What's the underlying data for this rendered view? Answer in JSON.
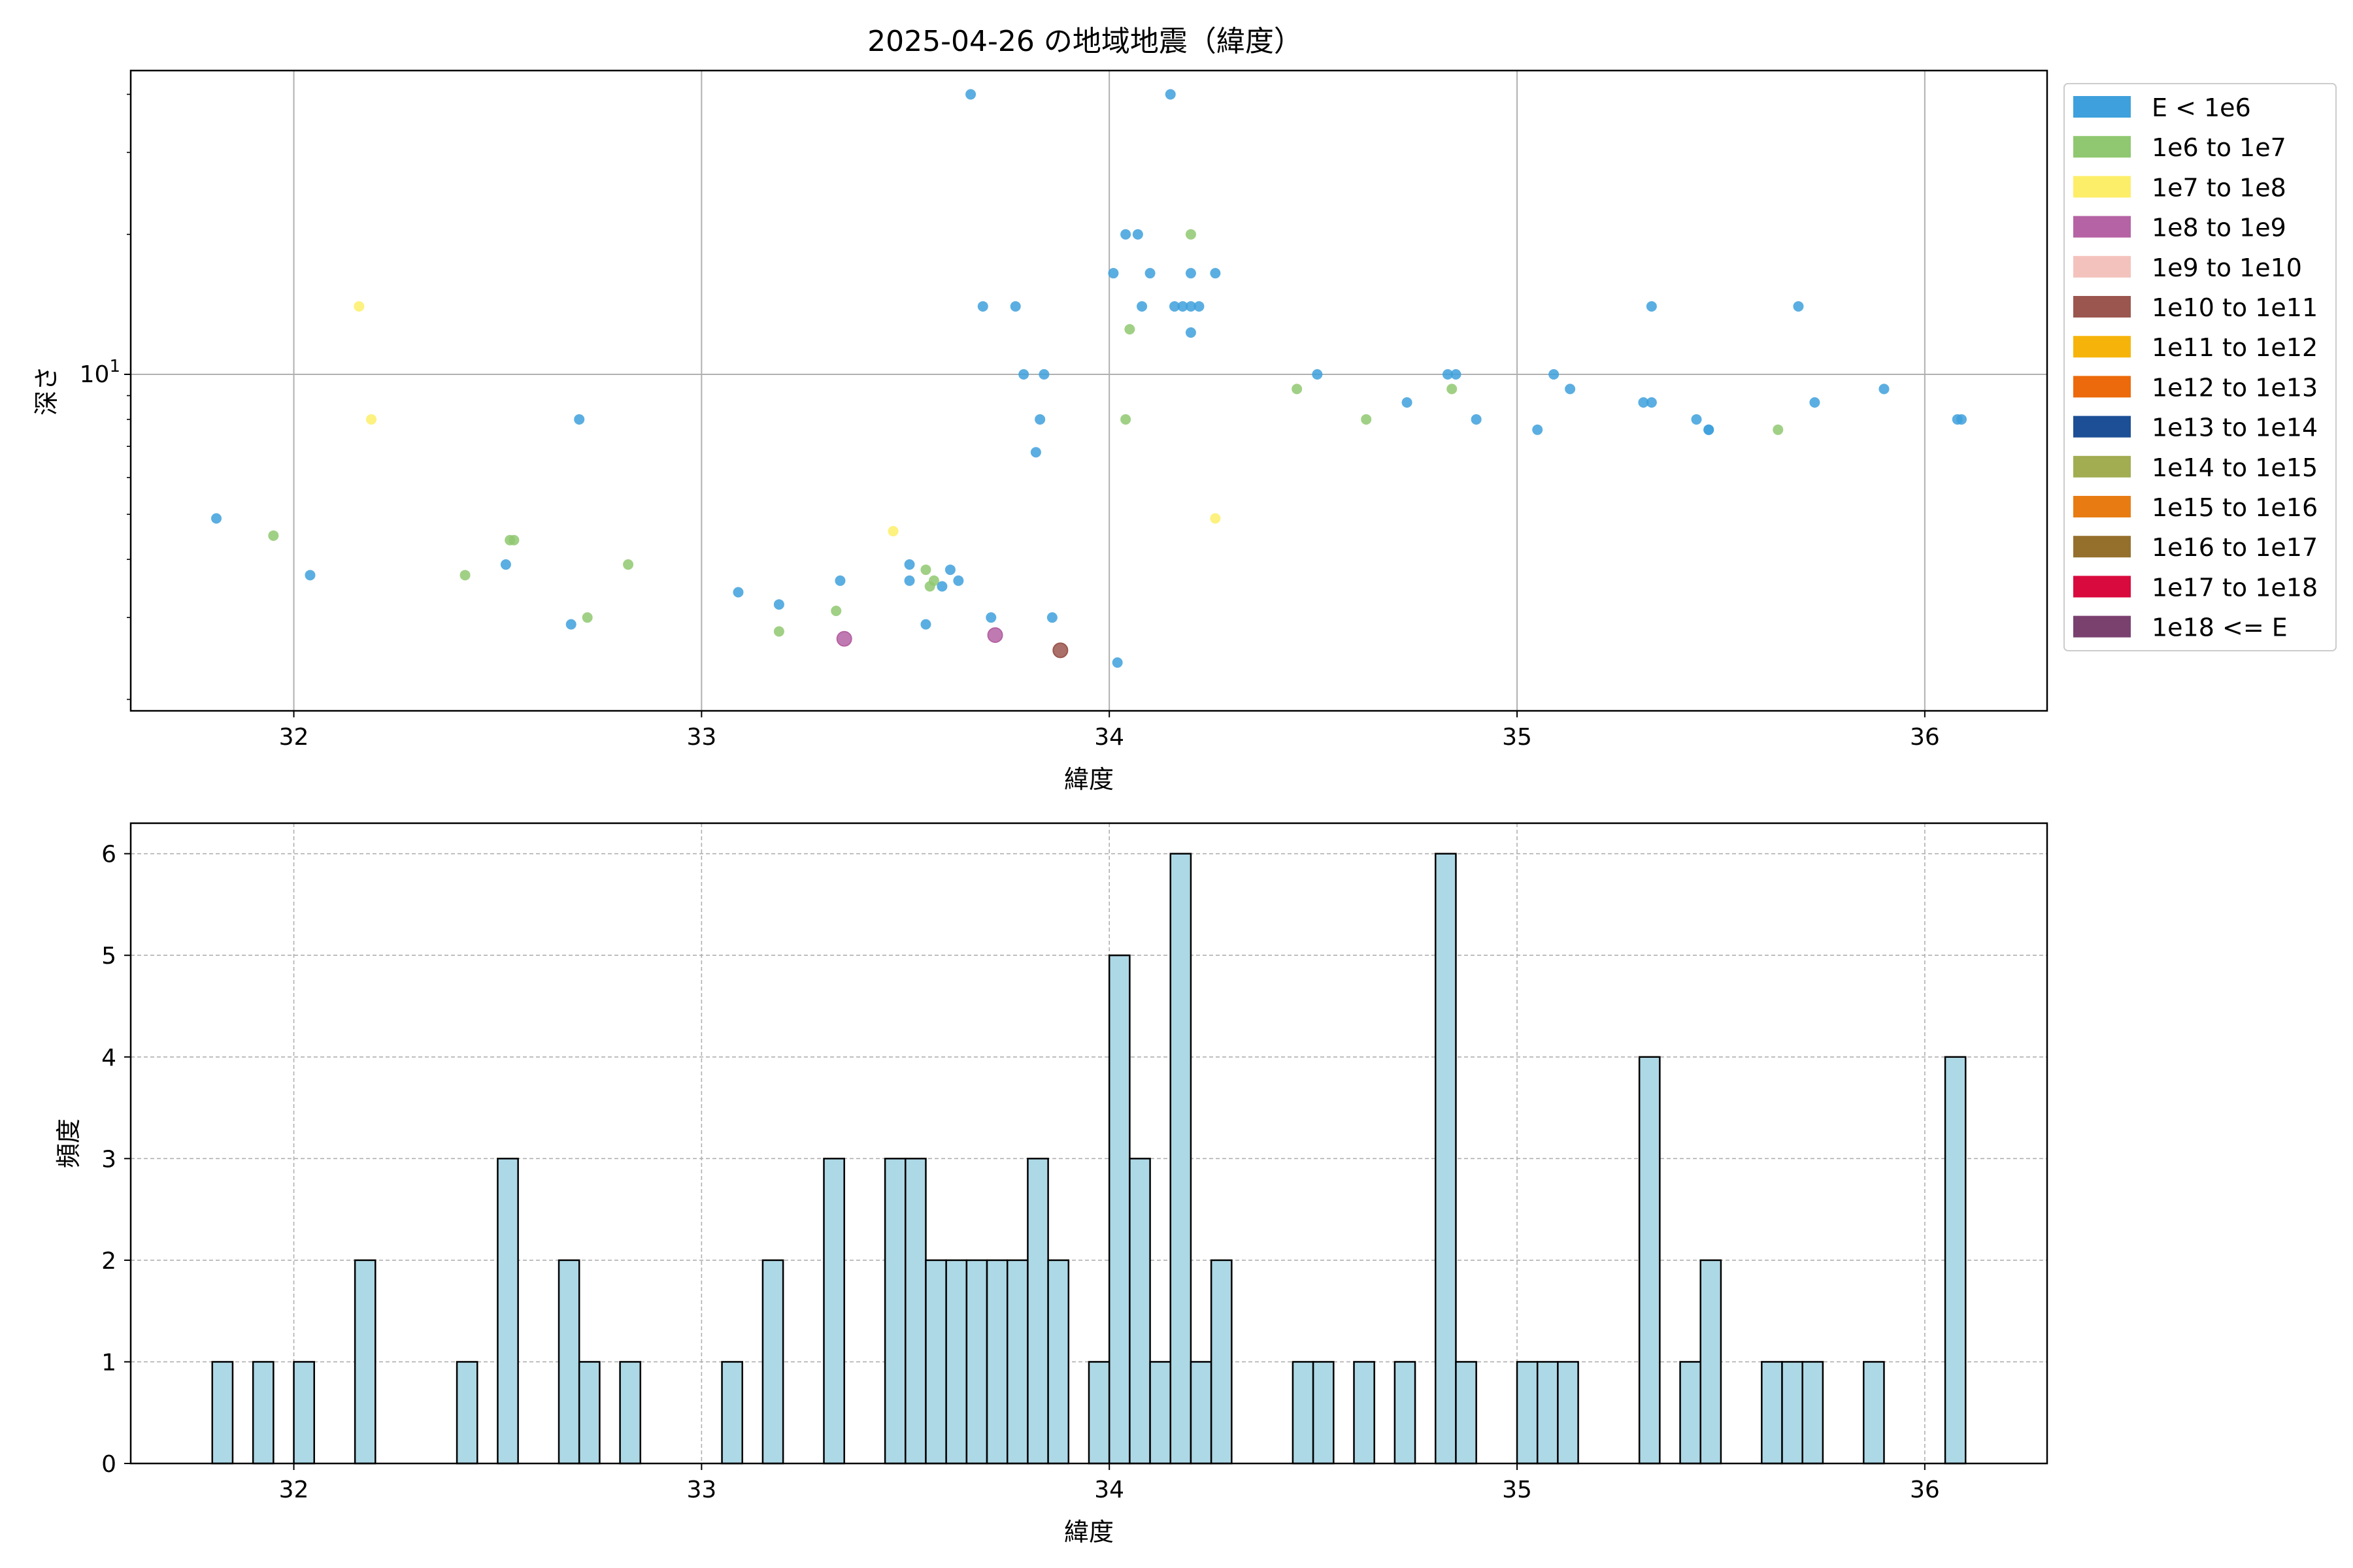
{
  "chart_data": [
    {
      "type": "scatter",
      "title": "2025-04-26 の地域地震（緯度）",
      "xlabel": "緯度",
      "ylabel": "深さ",
      "xlim": [
        31.6,
        36.3
      ],
      "ylim": [
        1.89,
        45
      ],
      "y_scale": "log",
      "x_ticks": [
        32,
        33,
        34,
        35,
        36
      ],
      "y_ticks": [
        {
          "value": 10,
          "label": "10",
          "exp": "1"
        }
      ],
      "grid": true,
      "legend_position": "right",
      "legend": [
        {
          "label": "E < 1e6",
          "color": "#3ea0dc"
        },
        {
          "label": "1e6 to 1e7",
          "color": "#8fc870"
        },
        {
          "label": "1e7 to 1e8",
          "color": "#fdee6a"
        },
        {
          "label": "1e8 to 1e9",
          "color": "#b563a4"
        },
        {
          "label": "1e9 to 1e10",
          "color": "#f4c2bc"
        },
        {
          "label": "1e10 to 1e11",
          "color": "#9b564f"
        },
        {
          "label": "1e11 to 1e12",
          "color": "#f6b40b"
        },
        {
          "label": "1e12 to 1e13",
          "color": "#ec6a0b"
        },
        {
          "label": "1e13 to 1e14",
          "color": "#1c4f96"
        },
        {
          "label": "1e14 to 1e15",
          "color": "#a2ad52"
        },
        {
          "label": "1e15 to 1e16",
          "color": "#e87c13"
        },
        {
          "label": "1e16 to 1e17",
          "color": "#95702d"
        },
        {
          "label": "1e17 to 1e18",
          "color": "#d90a3e"
        },
        {
          "label": "1e18 <= E",
          "color": "#7a416f"
        }
      ],
      "points": [
        {
          "x": 31.81,
          "y": 4.9,
          "c": 0
        },
        {
          "x": 31.95,
          "y": 4.5,
          "c": 1
        },
        {
          "x": 32.04,
          "y": 3.7,
          "c": 0
        },
        {
          "x": 32.16,
          "y": 14,
          "c": 2
        },
        {
          "x": 32.19,
          "y": 8,
          "c": 2
        },
        {
          "x": 32.42,
          "y": 3.7,
          "c": 1
        },
        {
          "x": 32.52,
          "y": 3.9,
          "c": 0
        },
        {
          "x": 32.53,
          "y": 4.4,
          "c": 1
        },
        {
          "x": 32.54,
          "y": 4.4,
          "c": 1
        },
        {
          "x": 32.68,
          "y": 2.9,
          "c": 0
        },
        {
          "x": 32.7,
          "y": 8,
          "c": 0
        },
        {
          "x": 32.72,
          "y": 3.0,
          "c": 1
        },
        {
          "x": 32.82,
          "y": 3.9,
          "c": 1
        },
        {
          "x": 33.09,
          "y": 3.4,
          "c": 0
        },
        {
          "x": 33.19,
          "y": 3.2,
          "c": 0
        },
        {
          "x": 33.19,
          "y": 2.8,
          "c": 1
        },
        {
          "x": 33.33,
          "y": 3.1,
          "c": 1
        },
        {
          "x": 33.34,
          "y": 3.6,
          "c": 0
        },
        {
          "x": 33.35,
          "y": 2.7,
          "c": 3
        },
        {
          "x": 33.47,
          "y": 4.6,
          "c": 2
        },
        {
          "x": 33.51,
          "y": 3.6,
          "c": 0
        },
        {
          "x": 33.51,
          "y": 3.9,
          "c": 0
        },
        {
          "x": 33.55,
          "y": 3.8,
          "c": 1
        },
        {
          "x": 33.55,
          "y": 2.9,
          "c": 0
        },
        {
          "x": 33.56,
          "y": 3.5,
          "c": 1
        },
        {
          "x": 33.57,
          "y": 3.6,
          "c": 1
        },
        {
          "x": 33.59,
          "y": 3.5,
          "c": 0
        },
        {
          "x": 33.61,
          "y": 3.8,
          "c": 0
        },
        {
          "x": 33.63,
          "y": 3.6,
          "c": 0
        },
        {
          "x": 33.66,
          "y": 40,
          "c": 0
        },
        {
          "x": 33.69,
          "y": 14,
          "c": 0
        },
        {
          "x": 33.71,
          "y": 3.0,
          "c": 0
        },
        {
          "x": 33.72,
          "y": 2.75,
          "c": 3
        },
        {
          "x": 33.77,
          "y": 14,
          "c": 0
        },
        {
          "x": 33.79,
          "y": 10,
          "c": 0
        },
        {
          "x": 33.82,
          "y": 6.8,
          "c": 0
        },
        {
          "x": 33.83,
          "y": 8,
          "c": 0
        },
        {
          "x": 33.84,
          "y": 10,
          "c": 0
        },
        {
          "x": 33.86,
          "y": 3.0,
          "c": 0
        },
        {
          "x": 33.88,
          "y": 2.55,
          "c": 5
        },
        {
          "x": 34.01,
          "y": 16.5,
          "c": 0
        },
        {
          "x": 34.02,
          "y": 2.4,
          "c": 0
        },
        {
          "x": 34.04,
          "y": 20,
          "c": 0
        },
        {
          "x": 34.04,
          "y": 8,
          "c": 1
        },
        {
          "x": 34.05,
          "y": 12.5,
          "c": 1
        },
        {
          "x": 34.07,
          "y": 20,
          "c": 0
        },
        {
          "x": 34.08,
          "y": 14,
          "c": 0
        },
        {
          "x": 34.1,
          "y": 16.5,
          "c": 0
        },
        {
          "x": 34.15,
          "y": 40,
          "c": 0
        },
        {
          "x": 34.16,
          "y": 14,
          "c": 0
        },
        {
          "x": 34.18,
          "y": 14,
          "c": 0
        },
        {
          "x": 34.2,
          "y": 20,
          "c": 1
        },
        {
          "x": 34.2,
          "y": 16.5,
          "c": 0
        },
        {
          "x": 34.2,
          "y": 14,
          "c": 0
        },
        {
          "x": 34.2,
          "y": 12.3,
          "c": 0
        },
        {
          "x": 34.22,
          "y": 14,
          "c": 0
        },
        {
          "x": 34.26,
          "y": 16.5,
          "c": 0
        },
        {
          "x": 34.26,
          "y": 4.9,
          "c": 2
        },
        {
          "x": 34.46,
          "y": 9.3,
          "c": 1
        },
        {
          "x": 34.51,
          "y": 10,
          "c": 0
        },
        {
          "x": 34.63,
          "y": 8,
          "c": 1
        },
        {
          "x": 34.73,
          "y": 8.7,
          "c": 0
        },
        {
          "x": 34.83,
          "y": 10,
          "c": 0
        },
        {
          "x": 34.84,
          "y": 9.3,
          "c": 1
        },
        {
          "x": 34.85,
          "y": 10,
          "c": 0
        },
        {
          "x": 34.9,
          "y": 8,
          "c": 0
        },
        {
          "x": 35.05,
          "y": 7.6,
          "c": 0
        },
        {
          "x": 35.09,
          "y": 10,
          "c": 0
        },
        {
          "x": 35.13,
          "y": 9.3,
          "c": 0
        },
        {
          "x": 35.31,
          "y": 8.7,
          "c": 0
        },
        {
          "x": 35.33,
          "y": 8.7,
          "c": 0
        },
        {
          "x": 35.33,
          "y": 14,
          "c": 0
        },
        {
          "x": 35.44,
          "y": 8,
          "c": 0
        },
        {
          "x": 35.47,
          "y": 7.6,
          "c": 0
        },
        {
          "x": 35.47,
          "y": 7.6,
          "c": 0
        },
        {
          "x": 35.64,
          "y": 7.6,
          "c": 1
        },
        {
          "x": 35.69,
          "y": 14,
          "c": 0
        },
        {
          "x": 35.73,
          "y": 8.7,
          "c": 0
        },
        {
          "x": 35.9,
          "y": 9.3,
          "c": 0
        },
        {
          "x": 36.08,
          "y": 8,
          "c": 0
        },
        {
          "x": 36.09,
          "y": 8,
          "c": 0
        }
      ]
    },
    {
      "type": "bar",
      "xlabel": "緯度",
      "ylabel": "頻度",
      "xlim": [
        31.6,
        36.3
      ],
      "ylim": [
        0,
        6.3
      ],
      "x_ticks": [
        32,
        33,
        34,
        35,
        36
      ],
      "y_ticks": [
        0,
        1,
        2,
        3,
        4,
        5,
        6
      ],
      "grid": true,
      "bar_color": "#add8e6",
      "bin_width": 0.05,
      "bins": [
        {
          "x0": 31.8,
          "count": 1
        },
        {
          "x0": 31.9,
          "count": 1
        },
        {
          "x0": 32.0,
          "count": 1
        },
        {
          "x0": 32.15,
          "count": 2
        },
        {
          "x0": 32.4,
          "count": 1
        },
        {
          "x0": 32.5,
          "count": 3
        },
        {
          "x0": 32.65,
          "count": 2
        },
        {
          "x0": 32.7,
          "count": 1
        },
        {
          "x0": 32.8,
          "count": 1
        },
        {
          "x0": 33.05,
          "count": 1
        },
        {
          "x0": 33.15,
          "count": 2
        },
        {
          "x0": 33.3,
          "count": 3
        },
        {
          "x0": 33.45,
          "count": 3
        },
        {
          "x0": 33.5,
          "count": 3
        },
        {
          "x0": 33.55,
          "count": 2
        },
        {
          "x0": 33.6,
          "count": 2
        },
        {
          "x0": 33.65,
          "count": 2
        },
        {
          "x0": 33.7,
          "count": 2
        },
        {
          "x0": 33.75,
          "count": 2
        },
        {
          "x0": 33.8,
          "count": 3
        },
        {
          "x0": 33.85,
          "count": 2
        },
        {
          "x0": 33.95,
          "count": 1
        },
        {
          "x0": 34.0,
          "count": 5
        },
        {
          "x0": 34.05,
          "count": 3
        },
        {
          "x0": 34.1,
          "count": 1
        },
        {
          "x0": 34.15,
          "count": 6
        },
        {
          "x0": 34.2,
          "count": 1
        },
        {
          "x0": 34.25,
          "count": 2
        },
        {
          "x0": 34.45,
          "count": 1
        },
        {
          "x0": 34.5,
          "count": 1
        },
        {
          "x0": 34.6,
          "count": 1
        },
        {
          "x0": 34.7,
          "count": 1
        },
        {
          "x0": 34.8,
          "count": 6
        },
        {
          "x0": 34.85,
          "count": 1
        },
        {
          "x0": 35.0,
          "count": 1
        },
        {
          "x0": 35.05,
          "count": 1
        },
        {
          "x0": 35.1,
          "count": 1
        },
        {
          "x0": 35.3,
          "count": 4
        },
        {
          "x0": 35.4,
          "count": 1
        },
        {
          "x0": 35.45,
          "count": 2
        },
        {
          "x0": 35.6,
          "count": 1
        },
        {
          "x0": 35.65,
          "count": 1
        },
        {
          "x0": 35.7,
          "count": 1
        },
        {
          "x0": 35.85,
          "count": 1
        },
        {
          "x0": 36.05,
          "count": 4
        }
      ]
    }
  ]
}
